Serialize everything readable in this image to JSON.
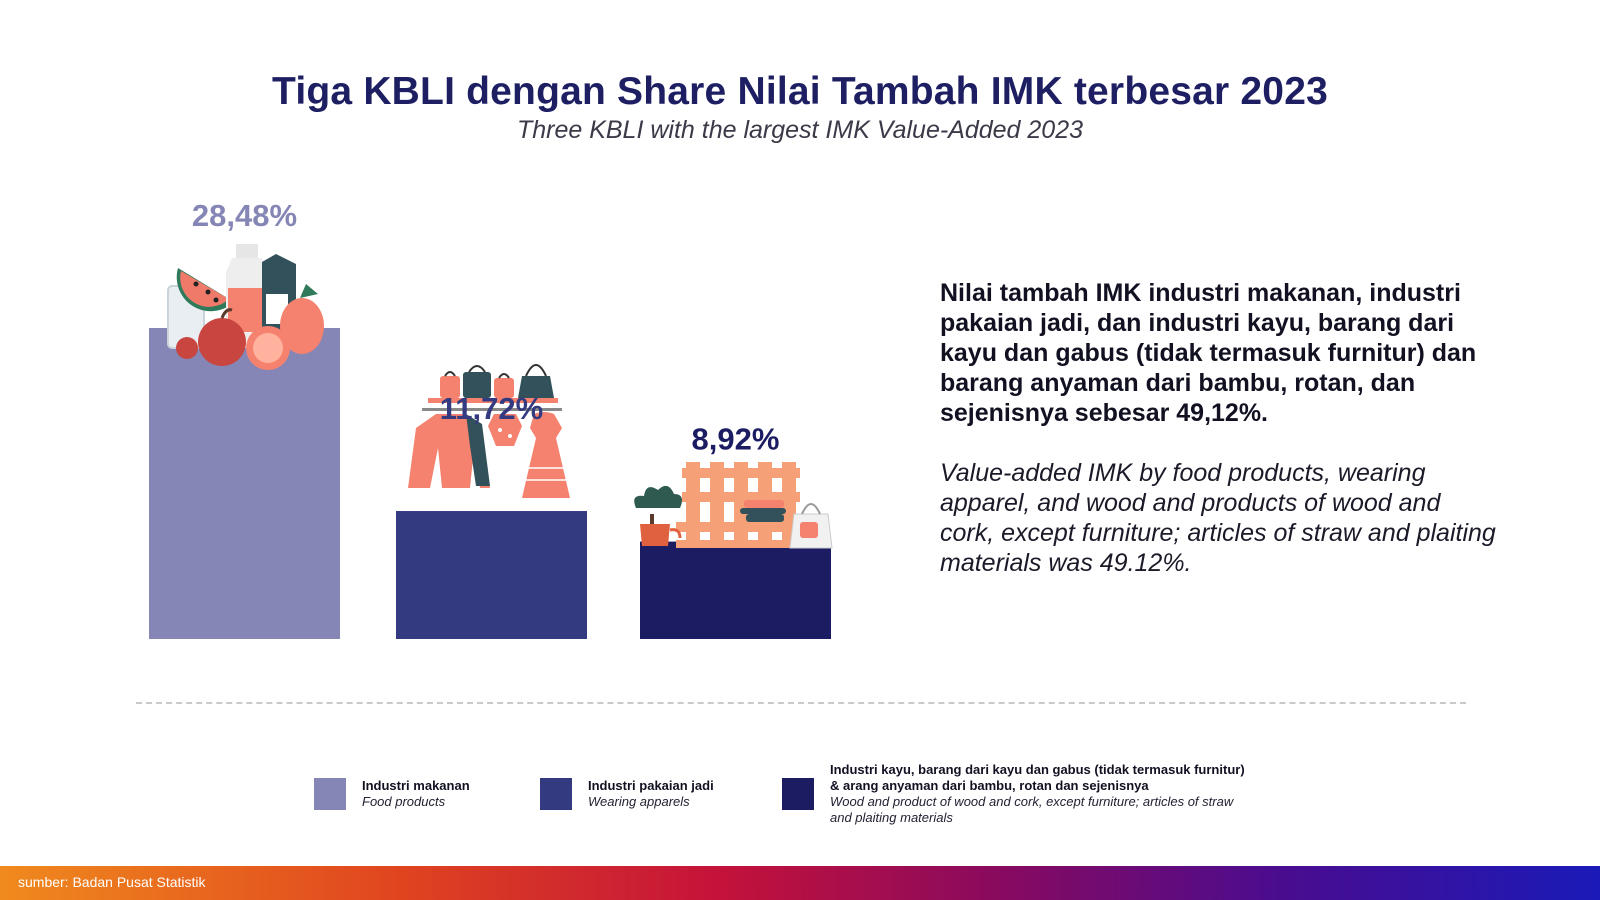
{
  "title": "Tiga KBLI dengan Share Nilai Tambah IMK terbesar 2023",
  "subtitle": "Three KBLI with the largest IMK Value-Added 2023",
  "chart_data": {
    "type": "bar",
    "categories": [
      "Industri makanan",
      "Industri pakaian jadi",
      "Industri kayu, barang dari kayu dan gabus"
    ],
    "values": [
      28.48,
      11.72,
      8.92
    ],
    "value_labels": [
      "28,48%",
      "11,72%",
      "8,92%"
    ],
    "colors": [
      "#8586b5",
      "#333a80",
      "#1c1c63"
    ],
    "label_colors": [
      "#8586b5",
      "#333a80",
      "#1c1c63"
    ],
    "icons": [
      "food-icon",
      "clothing-icon",
      "wood-furniture-icon"
    ]
  },
  "description": {
    "id": "Nilai tambah IMK industri makanan, industri pakaian jadi, dan industri kayu, barang dari kayu dan gabus (tidak termasuk furnitur) dan barang anyaman dari bambu, rotan, dan sejenisnya sebesar 49,12%.",
    "en": "Value-added IMK by food products, wearing apparel, and wood and products of wood and cork, except furniture; articles of straw and plaiting materials was 49.12%."
  },
  "legend": [
    {
      "id": "Industri makanan",
      "en": "Food products",
      "color": "#8586b5"
    },
    {
      "id": "Industri pakaian jadi",
      "en": "Wearing apparels",
      "color": "#333a80"
    },
    {
      "id": "Industri kayu, barang dari kayu dan gabus (tidak termasuk furnitur) & arang anyaman dari bambu, rotan dan sejenisnya",
      "en": "Wood and product of wood and cork, except furniture; articles of straw and plaiting materials",
      "color": "#1c1c63"
    }
  ],
  "source": "sumber: Badan Pusat Statistik"
}
